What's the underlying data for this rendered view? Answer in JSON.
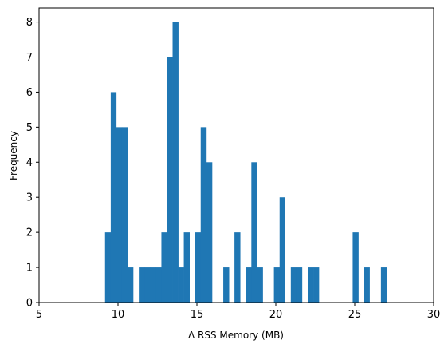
{
  "chart_data": {
    "type": "bar",
    "title": "",
    "xlabel": "Δ RSS Memory (MB)",
    "ylabel": "Frequency",
    "xlim": [
      5,
      30
    ],
    "ylim": [
      0,
      8.4
    ],
    "xticks": [
      5,
      10,
      15,
      20,
      25,
      30
    ],
    "yticks": [
      0,
      1,
      2,
      3,
      4,
      5,
      6,
      7,
      8
    ],
    "bar_color": "#1f77b4",
    "grid": false,
    "bin_edges": [
      9.18,
      9.54,
      9.89,
      10.25,
      10.61,
      10.96,
      11.32,
      11.68,
      12.03,
      12.39,
      12.75,
      13.1,
      13.46,
      13.82,
      14.17,
      14.53,
      14.89,
      15.24,
      15.6,
      15.96,
      16.31,
      16.67,
      17.03,
      17.38,
      17.74,
      18.1,
      18.45,
      18.81,
      19.17,
      19.52,
      19.88,
      20.24,
      20.59,
      20.95,
      21.31,
      21.66,
      22.02,
      22.38,
      22.73,
      23.09,
      23.45,
      23.8,
      24.16,
      24.52,
      24.87,
      25.23,
      25.59,
      25.94,
      26.3,
      26.66,
      27.01
    ],
    "counts": [
      2,
      6,
      5,
      5,
      1,
      0,
      1,
      1,
      1,
      1,
      2,
      7,
      8,
      1,
      2,
      0,
      2,
      5,
      4,
      0,
      0,
      1,
      0,
      2,
      0,
      1,
      4,
      1,
      0,
      0,
      1,
      3,
      0,
      1,
      1,
      0,
      1,
      1,
      0,
      0,
      0,
      0,
      0,
      0,
      2,
      0,
      1,
      0,
      0,
      1
    ]
  }
}
